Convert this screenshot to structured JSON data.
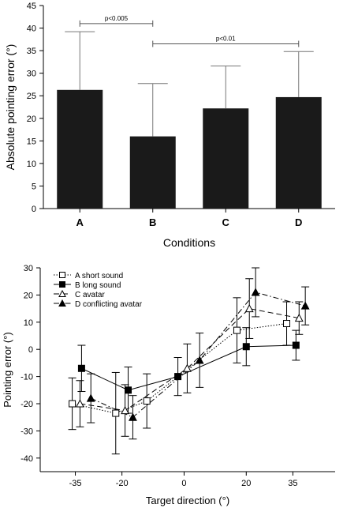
{
  "chart_data": [
    {
      "type": "bar",
      "categories": [
        "A",
        "B",
        "C",
        "D"
      ],
      "values": [
        26.3,
        16.0,
        22.2,
        24.7
      ],
      "error_upper": [
        12.9,
        11.7,
        9.4,
        10.1
      ],
      "xlabel": "Conditions",
      "ylabel": "Absolute pointing error (°)",
      "ylim": [
        0,
        45
      ],
      "yticks": [
        0,
        5,
        10,
        15,
        20,
        25,
        30,
        35,
        40,
        45
      ],
      "bar_color": "#1a1a1a",
      "annotations": [
        {
          "from": "A",
          "to": "B",
          "label": "p<0.005",
          "y": 41
        },
        {
          "from": "B",
          "to": "D",
          "label": "p<0.01",
          "y": 36.5
        }
      ]
    },
    {
      "type": "line",
      "xlabel": "Target direction (°)",
      "ylabel": "Pointing error (°)",
      "xticks": [
        -35,
        -20,
        0,
        20,
        35
      ],
      "ylim": [
        -45,
        30
      ],
      "yticks": [
        -40,
        -30,
        -20,
        -10,
        0,
        10,
        20,
        30
      ],
      "legend_position": "top-left",
      "series": [
        {
          "name": "A short sound",
          "marker": "open-square",
          "dash": "1.5,2",
          "x": [
            -36,
            -22,
            -12,
            17,
            33
          ],
          "y": [
            -20,
            -23.5,
            -19,
            7,
            9.5
          ],
          "err": [
            9.5,
            15,
            10,
            12,
            8
          ]
        },
        {
          "name": "B long sound",
          "marker": "filled-square",
          "dash": "",
          "x": [
            -33,
            -18,
            -2,
            20,
            36
          ],
          "y": [
            -7,
            -15,
            -10,
            1,
            1.5
          ],
          "err": [
            8.5,
            8.5,
            7,
            7,
            5.5
          ]
        },
        {
          "name": "C avatar",
          "marker": "open-triangle",
          "dash": "7,4",
          "x": [
            -33.5,
            -19,
            1,
            21,
            37
          ],
          "y": [
            -20,
            -22.5,
            -7,
            15,
            11.5
          ],
          "err": [
            8.5,
            9.5,
            9,
            11,
            6
          ]
        },
        {
          "name": "D conflicting avatar",
          "marker": "filled-triangle",
          "dash": "7,3,1.5,3",
          "x": [
            -30,
            -16.5,
            5,
            23,
            39
          ],
          "y": [
            -18,
            -25,
            -4,
            21,
            16
          ],
          "err": [
            9,
            8,
            10,
            9,
            7
          ]
        }
      ]
    }
  ]
}
